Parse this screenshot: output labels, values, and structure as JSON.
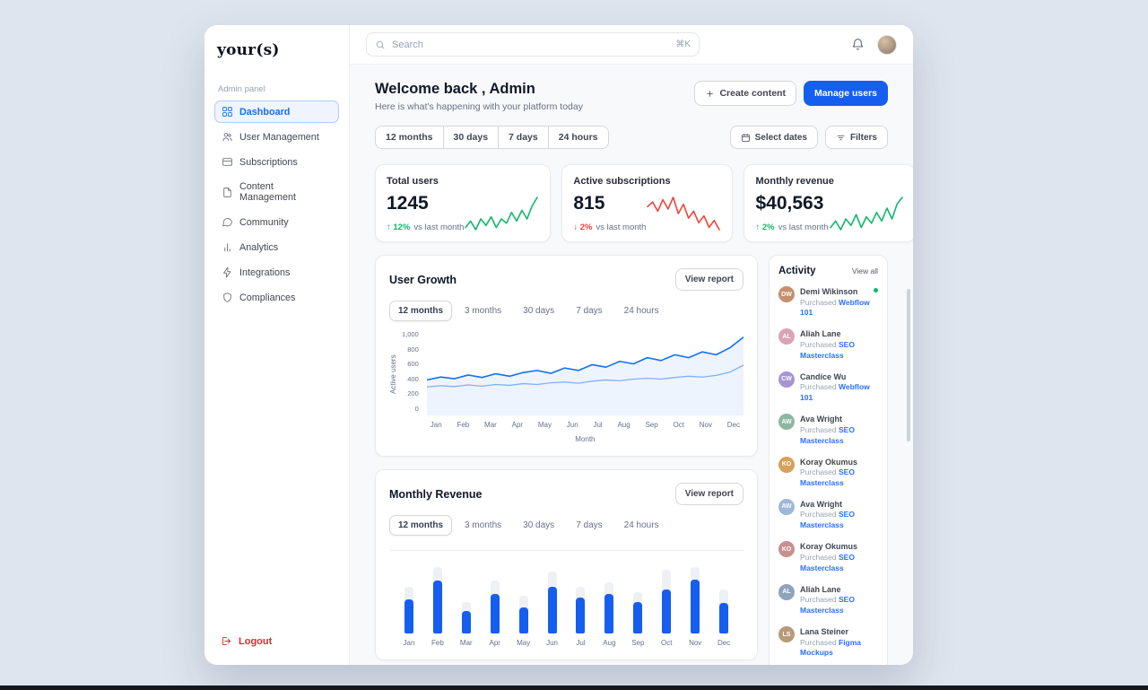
{
  "brand": {
    "logo": "your(s)",
    "panel_label": "Admin panel"
  },
  "sidebar": {
    "items": [
      {
        "label": "Dashboard",
        "icon": "grid-icon",
        "active": true
      },
      {
        "label": "User Management",
        "icon": "users-icon",
        "active": false
      },
      {
        "label": "Subscriptions",
        "icon": "card-icon",
        "active": false
      },
      {
        "label": "Content Management",
        "icon": "file-icon",
        "active": false
      },
      {
        "label": "Community",
        "icon": "chat-icon",
        "active": false
      },
      {
        "label": "Analytics",
        "icon": "chart-icon",
        "active": false
      },
      {
        "label": "Integrations",
        "icon": "zap-icon",
        "active": false
      },
      {
        "label": "Compliances",
        "icon": "shield-icon",
        "active": false
      }
    ],
    "logout_label": "Logout"
  },
  "topbar": {
    "search_placeholder": "Search",
    "shortcut": "⌘K"
  },
  "header": {
    "title": "Welcome back , Admin",
    "subtitle": "Here is what's happening with your platform today",
    "create_button": "Create content",
    "manage_button": "Manage users"
  },
  "range_tabs": [
    "12 months",
    "30 days",
    "7 days",
    "24 hours"
  ],
  "filters": {
    "select_dates": "Select dates",
    "filters": "Filters"
  },
  "stats": [
    {
      "label": "Total users",
      "value": "1245",
      "delta": "12%",
      "delta_dir": "up",
      "delta_suffix": "vs last month",
      "trend_color": "#12b76a"
    },
    {
      "label": "Active subscriptions",
      "value": "815",
      "delta": "2%",
      "delta_dir": "down",
      "delta_suffix": "vs last month",
      "trend_color": "#f04438"
    },
    {
      "label": "Monthly revenue",
      "value": "$40,563",
      "delta": "2%",
      "delta_dir": "up",
      "delta_suffix": "vs last month",
      "trend_color": "#12b76a"
    }
  ],
  "user_growth": {
    "title": "User Growth",
    "view_report": "View report",
    "tabs": [
      "12 months",
      "3 months",
      "30 days",
      "7 days",
      "24 hours"
    ],
    "active_tab": "12 months"
  },
  "monthly_revenue": {
    "title": "Monthly Revenue",
    "view_report": "View report",
    "tabs": [
      "12 months",
      "3 months",
      "30 days",
      "7 days",
      "24 hours"
    ],
    "active_tab": "12 months"
  },
  "activity": {
    "title": "Activity",
    "view_all": "View all",
    "items": [
      {
        "name": "Demi Wikinson",
        "action": "Purchased",
        "product": "Webflow 101",
        "online": true
      },
      {
        "name": "Aliah Lane",
        "action": "Purchased",
        "product": "SEO Masterclass",
        "online": false
      },
      {
        "name": "Candice Wu",
        "action": "Purchased",
        "product": "Webflow 101",
        "online": false
      },
      {
        "name": "Ava Wright",
        "action": "Purchased",
        "product": "SEO Masterclass",
        "online": false
      },
      {
        "name": "Koray Okumus",
        "action": "Purchased",
        "product": "SEO Masterclass",
        "online": false
      },
      {
        "name": "Ava Wright",
        "action": "Purchased",
        "product": "SEO Masterclass",
        "online": false
      },
      {
        "name": "Koray Okumus",
        "action": "Purchased",
        "product": "SEO Masterclass",
        "online": false
      },
      {
        "name": "Aliah Lane",
        "action": "Purchased",
        "product": "SEO Masterclass",
        "online": false
      },
      {
        "name": "Lana Steiner",
        "action": "Purchased",
        "product": "Figma Mockups",
        "online": false
      }
    ]
  },
  "chart_data": [
    {
      "name": "total-users-trend",
      "type": "line",
      "color": "#12b76a",
      "values": [
        8,
        11,
        7,
        12,
        9,
        13,
        8,
        12,
        10,
        15,
        11,
        16,
        12,
        18,
        22
      ]
    },
    {
      "name": "active-subscriptions-trend",
      "type": "line",
      "color": "#f04438",
      "values": [
        16,
        18,
        14,
        19,
        15,
        20,
        13,
        17,
        11,
        14,
        9,
        12,
        7,
        10,
        6
      ]
    },
    {
      "name": "monthly-revenue-trend",
      "type": "line",
      "color": "#12b76a",
      "values": [
        9,
        12,
        8,
        13,
        10,
        15,
        9,
        14,
        11,
        16,
        12,
        18,
        13,
        20,
        23
      ]
    },
    {
      "name": "user-growth",
      "type": "line",
      "title": "User Growth",
      "x": [
        "Jan",
        "Feb",
        "Mar",
        "Apr",
        "May",
        "Jun",
        "Jul",
        "Aug",
        "Sep",
        "Oct",
        "Nov",
        "Dec"
      ],
      "xlabel": "Month",
      "ylabel": "Active users",
      "ylim": [
        0,
        1000
      ],
      "yticks": [
        "0",
        "200",
        "400",
        "600",
        "800",
        "1,000"
      ],
      "series": [
        {
          "name": "active-users-upper",
          "values": [
            430,
            465,
            445,
            490,
            460,
            505,
            475,
            520,
            545,
            510,
            575,
            545,
            615,
            585,
            655,
            625,
            700,
            665,
            735,
            700,
            770,
            735,
            820,
            950
          ]
        },
        {
          "name": "active-users-lower",
          "values": [
            345,
            360,
            350,
            370,
            355,
            375,
            365,
            385,
            375,
            395,
            405,
            390,
            415,
            430,
            420,
            440,
            450,
            440,
            460,
            475,
            465,
            485,
            525,
            610
          ]
        }
      ]
    },
    {
      "name": "monthly-revenue",
      "type": "bar",
      "categories": [
        "Jan",
        "Feb",
        "Mar",
        "Apr",
        "May",
        "Jun",
        "Jul",
        "Aug",
        "Sep",
        "Oct",
        "Nov",
        "Dec"
      ],
      "ylim": [
        0,
        100
      ],
      "series": [
        {
          "name": "revenue",
          "values": [
            45,
            70,
            30,
            52,
            35,
            62,
            48,
            52,
            42,
            58,
            72,
            40
          ]
        },
        {
          "name": "projection",
          "values": [
            62,
            88,
            42,
            70,
            50,
            82,
            62,
            68,
            55,
            85,
            88,
            58
          ]
        }
      ]
    }
  ]
}
